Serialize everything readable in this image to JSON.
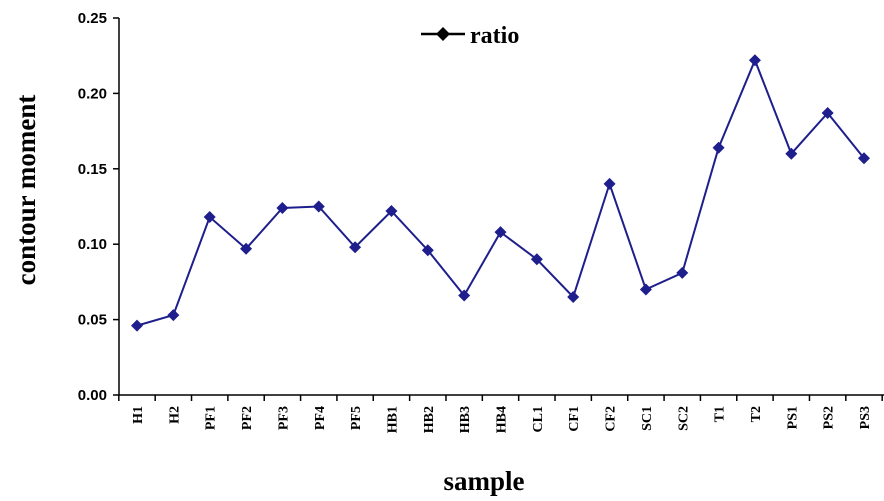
{
  "chart_data": {
    "type": "line",
    "xlabel": "sample",
    "ylabel": "contour moment",
    "ylim": [
      0,
      0.25
    ],
    "yticks": [
      "0.00",
      "0.05",
      "0.10",
      "0.15",
      "0.20",
      "0.25"
    ],
    "categories": [
      "H1",
      "H2",
      "PF1",
      "PF2",
      "PF3",
      "PF4",
      "PF5",
      "HB1",
      "HB2",
      "HB3",
      "HB4",
      "CL1",
      "CF1",
      "CF2",
      "SC1",
      "SC2",
      "T1",
      "T2",
      "PS1",
      "PS2",
      "PS3"
    ],
    "series": [
      {
        "name": "ratio",
        "color": "#1e1e8c",
        "values": [
          0.046,
          0.053,
          0.118,
          0.097,
          0.124,
          0.125,
          0.098,
          0.122,
          0.096,
          0.066,
          0.108,
          0.09,
          0.065,
          0.14,
          0.07,
          0.081,
          0.164,
          0.222,
          0.16,
          0.187,
          0.157
        ]
      }
    ],
    "legend": {
      "position": "top-center"
    },
    "grid": false
  }
}
